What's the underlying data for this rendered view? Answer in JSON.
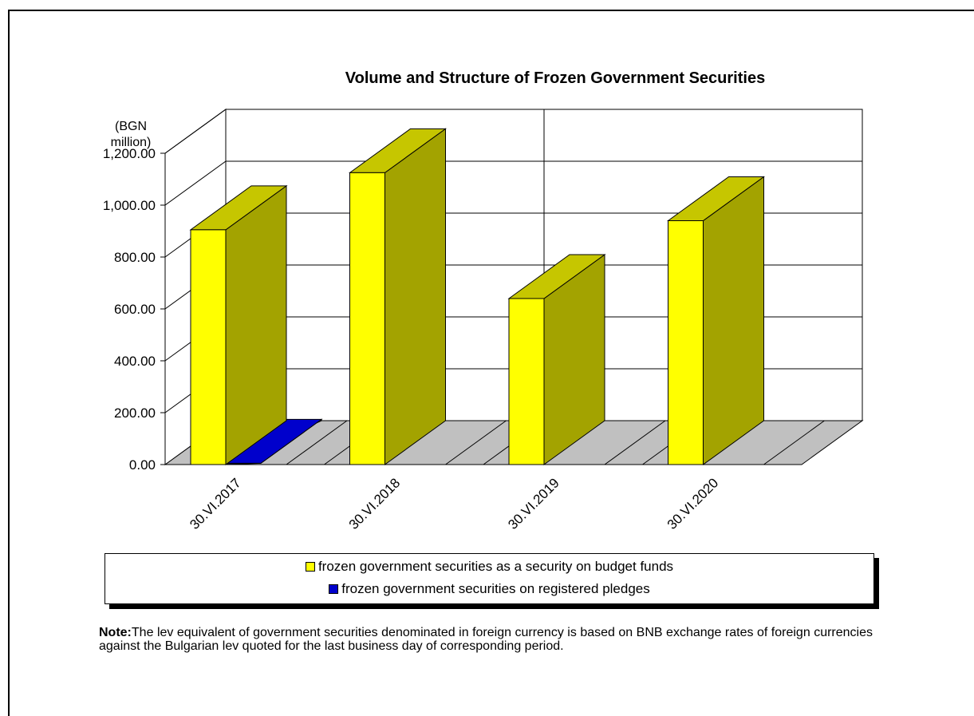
{
  "chart_data": {
    "type": "bar",
    "title": "Volume and Structure of Frozen Government Securities",
    "ylabel_lines": [
      "(BGN",
      "million)"
    ],
    "ylim": [
      0,
      1200
    ],
    "ytick_labels": [
      "0.00",
      "200.00",
      "400.00",
      "600.00",
      "800.00",
      "1,000.00",
      "1,200.00"
    ],
    "yticks": [
      0,
      200,
      400,
      600,
      800,
      1000,
      1200
    ],
    "categories": [
      "30.VI.2017",
      "30.VI.2018",
      "30.VI.2019",
      "30.VI.2020"
    ],
    "series": [
      {
        "name": "frozen government securities as a security on budget funds",
        "values": [
          905,
          1125,
          640,
          940
        ],
        "color": "#ffff00"
      },
      {
        "name": "frozen government securities on registered pledges",
        "values": [
          5,
          0,
          0,
          0
        ],
        "color": "#0000cc"
      }
    ],
    "grid": true,
    "three_d": true,
    "legend_position": "bottom"
  },
  "note": {
    "label": "Note:",
    "text": "The lev equivalent of government securities denominated in foreign currency is based on BNB exchange rates of foreign currencies against the Bulgarian lev quoted for the last business day of corresponding period."
  }
}
